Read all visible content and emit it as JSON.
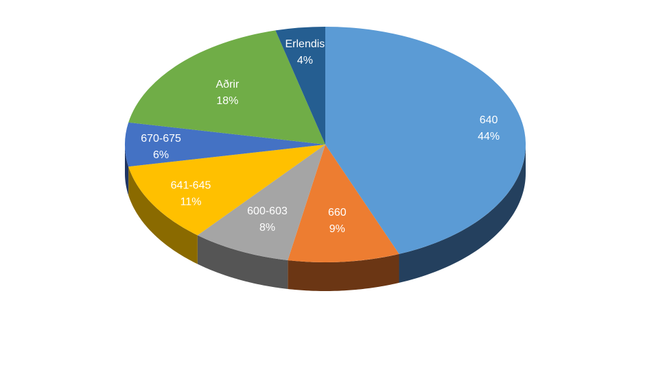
{
  "chart_data": {
    "type": "pie",
    "style": "3d",
    "title": "",
    "slices": [
      {
        "label": "640",
        "value": 44,
        "value_label": "44%",
        "color": "#5b9bd5",
        "side_color": "#24405e"
      },
      {
        "label": "660",
        "value": 9,
        "value_label": "9%",
        "color": "#ed7d31",
        "side_color": "#6b3614"
      },
      {
        "label": "600-603",
        "value": 8,
        "value_label": "8%",
        "color": "#a5a5a5",
        "side_color": "#555555"
      },
      {
        "label": "641-645",
        "value": 11,
        "value_label": "11%",
        "color": "#ffc000",
        "side_color": "#8a6a00"
      },
      {
        "label": "670-675",
        "value": 6,
        "value_label": "6%",
        "color": "#4472c4",
        "side_color": "#1f3563"
      },
      {
        "label": "Aðrir",
        "value": 18,
        "value_label": "18%",
        "color": "#70ad47",
        "side_color": "#355a20"
      },
      {
        "label": "Erlendis",
        "value": 4,
        "value_label": "4%",
        "color": "#255e91",
        "side_color": "#112c45"
      }
    ]
  }
}
